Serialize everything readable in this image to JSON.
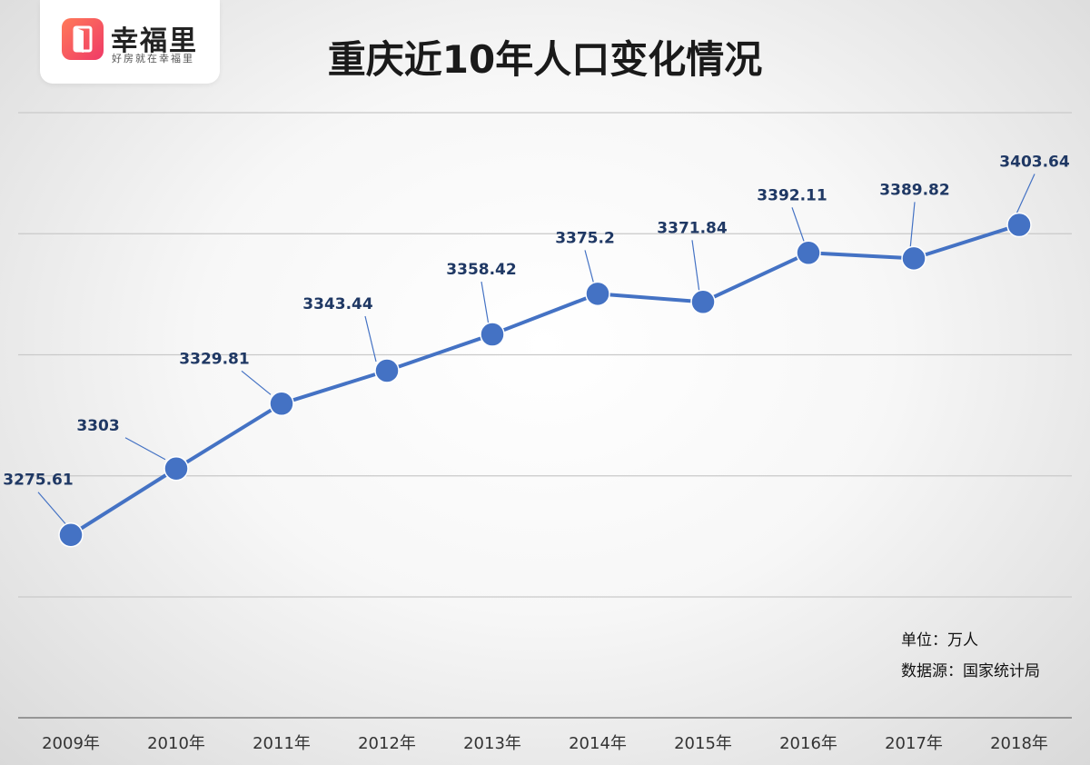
{
  "logo": {
    "name": "幸福里",
    "slogan": "好房就在幸福里"
  },
  "chart_data": {
    "type": "line",
    "title": "重庆近10年人口变化情况",
    "categories": [
      "2009年",
      "2010年",
      "2011年",
      "2012年",
      "2013年",
      "2014年",
      "2015年",
      "2016年",
      "2017年",
      "2018年"
    ],
    "series": [
      {
        "values": [
          3275.61,
          3303,
          3329.81,
          3343.44,
          3358.42,
          3375.2,
          3371.84,
          3392.11,
          3389.82,
          3403.64
        ]
      }
    ],
    "data_labels": [
      "3275.61",
      "3303",
      "3329.81",
      "3343.44",
      "3358.42",
      "3375.2",
      "3371.84",
      "3392.11",
      "3389.82",
      "3403.64"
    ],
    "ylim": [
      3250,
      3450
    ],
    "grid": true,
    "color": "#4472c4"
  },
  "notes": {
    "unit": "单位：万人",
    "source": "数据源：国家统计局"
  }
}
